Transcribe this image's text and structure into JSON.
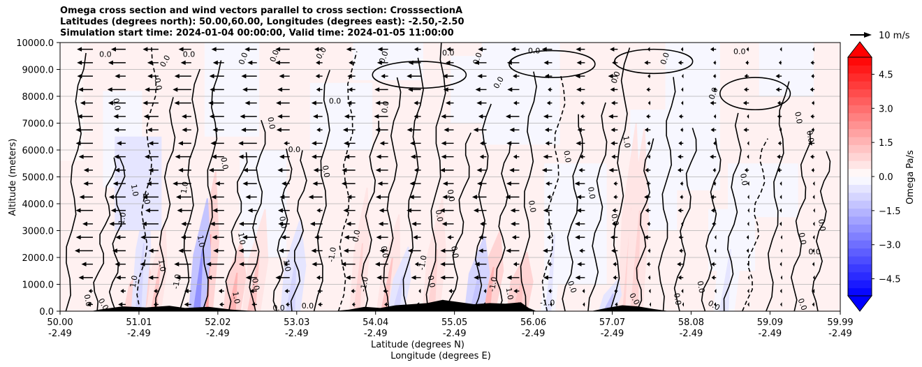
{
  "title": {
    "line1": "Omega cross section and wind vectors parallel to cross section: CrosssectionA",
    "line2": "Latitudes (degrees north): 50.00,60.00, Longitudes (degrees east): -2.50,-2.50",
    "line3": "Simulation start time: 2024-01-04 00:00:00, Valid time: 2024-01-05 11:00:00"
  },
  "chart_data": {
    "type": "heatmap",
    "xlabel_lat": "Latitude (degrees N)",
    "xlabel_lon": "Longitude (degrees E)",
    "ylabel": "Altitude (meters)",
    "xlim": [
      50.0,
      59.99
    ],
    "ylim": [
      0,
      10000
    ],
    "x_ticks": [
      {
        "lat": "50.00",
        "lon": "-2.49",
        "value": 50.0
      },
      {
        "lat": "51.01",
        "lon": "-2.49",
        "value": 51.01
      },
      {
        "lat": "52.02",
        "lon": "-2.49",
        "value": 52.02
      },
      {
        "lat": "53.03",
        "lon": "-2.49",
        "value": 53.03
      },
      {
        "lat": "54.04",
        "lon": "-2.49",
        "value": 54.04
      },
      {
        "lat": "55.05",
        "lon": "-2.49",
        "value": 55.05
      },
      {
        "lat": "56.06",
        "lon": "-2.49",
        "value": 56.06
      },
      {
        "lat": "57.07",
        "lon": "-2.49",
        "value": 57.07
      },
      {
        "lat": "58.08",
        "lon": "-2.49",
        "value": 58.08
      },
      {
        "lat": "59.09",
        "lon": "-2.49",
        "value": 59.09
      },
      {
        "lat": "59.99",
        "lon": "-2.49",
        "value": 59.99
      }
    ],
    "y_ticks": [
      {
        "label": "0.0",
        "value": 0
      },
      {
        "label": "1000.0",
        "value": 1000
      },
      {
        "label": "2000.0",
        "value": 2000
      },
      {
        "label": "3000.0",
        "value": 3000
      },
      {
        "label": "4000.0",
        "value": 4000
      },
      {
        "label": "5000.0",
        "value": 5000
      },
      {
        "label": "6000.0",
        "value": 6000
      },
      {
        "label": "7000.0",
        "value": 7000
      },
      {
        "label": "8000.0",
        "value": 8000
      },
      {
        "label": "9000.0",
        "value": 9000
      },
      {
        "label": "10000.0",
        "value": 10000
      }
    ],
    "grid": "horizontal",
    "colorbar": {
      "label": "Omega Pa/s",
      "range": [
        -5.25,
        5.25
      ],
      "extend": "both",
      "ticks": [
        "4.5",
        "3.0",
        "1.5",
        "0.0",
        "−1.5",
        "−3.0",
        "−4.5"
      ],
      "tick_values": [
        4.5,
        3.0,
        1.5,
        0.0,
        -1.5,
        -3.0,
        -4.5
      ],
      "levels": [
        -5.25,
        -4.9,
        -4.55,
        -4.2,
        -3.85,
        -3.5,
        -3.15,
        -2.8,
        -2.45,
        -2.1,
        -1.75,
        -1.4,
        -1.05,
        -0.7,
        -0.35,
        0,
        0.35,
        0.7,
        1.05,
        1.4,
        1.75,
        2.1,
        2.45,
        2.8,
        3.15,
        3.5,
        3.85,
        4.2,
        4.55,
        4.9,
        5.25
      ],
      "colormap": "bwr",
      "under_color": "#0000ff",
      "over_color": "#ff0000"
    },
    "quiver_key": {
      "label": "10 m/s",
      "speed": 10
    },
    "positive_bands": [
      {
        "lat": 50.95,
        "alt_top": 2000,
        "omega": 1.5
      },
      {
        "lat": 51.2,
        "alt_top": 3200,
        "omega": 1.2
      },
      {
        "lat": 51.85,
        "alt_top": 5200,
        "omega": 1.8
      },
      {
        "lat": 52.2,
        "alt_top": 2600,
        "omega": 1.6
      },
      {
        "lat": 52.45,
        "alt_top": 3800,
        "omega": 1.2
      },
      {
        "lat": 53.8,
        "alt_top": 4600,
        "omega": 0.9
      },
      {
        "lat": 54.15,
        "alt_top": 3600,
        "omega": 1.1
      },
      {
        "lat": 54.75,
        "alt_top": 4200,
        "omega": 0.9
      },
      {
        "lat": 55.45,
        "alt_top": 3000,
        "omega": 1.4
      },
      {
        "lat": 55.85,
        "alt_top": 2200,
        "omega": 1.3
      },
      {
        "lat": 57.25,
        "alt_top": 7000,
        "omega": 0.7
      },
      {
        "lat": 57.35,
        "alt_top": 6800,
        "omega": 0.8
      }
    ],
    "negative_bands": [
      {
        "lat": 51.0,
        "alt_top": 4600,
        "omega": -0.9
      },
      {
        "lat": 51.75,
        "alt_top": 4200,
        "omega": -2.2
      },
      {
        "lat": 52.95,
        "alt_top": 3400,
        "omega": -0.8
      },
      {
        "lat": 54.3,
        "alt_top": 2400,
        "omega": -1.0
      },
      {
        "lat": 55.3,
        "alt_top": 2800,
        "omega": -1.3
      },
      {
        "lat": 56.25,
        "alt_top": 5200,
        "omega": -0.6
      },
      {
        "lat": 57.0,
        "alt_top": 1200,
        "omega": -1.2
      },
      {
        "lat": 58.5,
        "alt_top": 4200,
        "omega": -0.5
      }
    ],
    "contour_labels": [
      {
        "text": "0.0",
        "lat": 50.58,
        "alt": 9550,
        "angle": 0
      },
      {
        "text": "0.0",
        "lat": 51.35,
        "alt": 9300,
        "angle": -60
      },
      {
        "text": "0.0",
        "lat": 51.65,
        "alt": 9550,
        "angle": 0
      },
      {
        "text": "0.0",
        "lat": 52.35,
        "alt": 9400,
        "angle": -70
      },
      {
        "text": "0.0",
        "lat": 52.75,
        "alt": 9500,
        "angle": -70
      },
      {
        "text": "0.0",
        "lat": 53.35,
        "alt": 9600,
        "angle": -60
      },
      {
        "text": "0.0",
        "lat": 54.15,
        "alt": 9450,
        "angle": -70
      },
      {
        "text": "0.0",
        "lat": 54.97,
        "alt": 9600,
        "angle": 0
      },
      {
        "text": "0.0",
        "lat": 55.35,
        "alt": 9400,
        "angle": -70
      },
      {
        "text": "0.0",
        "lat": 56.07,
        "alt": 9680,
        "angle": 0
      },
      {
        "text": "0.0",
        "lat": 57.75,
        "alt": 9400,
        "angle": -70
      },
      {
        "text": "0.0",
        "lat": 58.7,
        "alt": 9650,
        "angle": 0
      },
      {
        "text": "0.0",
        "lat": 51.25,
        "alt": 8450,
        "angle": 80
      },
      {
        "text": "0.0",
        "lat": 53.52,
        "alt": 7800,
        "angle": 0
      },
      {
        "text": "0.0",
        "lat": 54.17,
        "alt": 7600,
        "angle": -80
      },
      {
        "text": "0.0",
        "lat": 55.62,
        "alt": 8500,
        "angle": -60
      },
      {
        "text": "0.0",
        "lat": 57.12,
        "alt": 8700,
        "angle": -70
      },
      {
        "text": "0.0",
        "lat": 58.37,
        "alt": 8100,
        "angle": -70
      },
      {
        "text": "0.0",
        "lat": 50.72,
        "alt": 7700,
        "angle": 80
      },
      {
        "text": "0.0",
        "lat": 52.7,
        "alt": 7000,
        "angle": 80
      },
      {
        "text": "0.0",
        "lat": 53.0,
        "alt": 6000,
        "angle": 0
      },
      {
        "text": "1.0",
        "lat": 57.25,
        "alt": 6300,
        "angle": 80
      },
      {
        "text": "0.0",
        "lat": 56.49,
        "alt": 5750,
        "angle": 80
      },
      {
        "text": "0.0",
        "lat": 59.45,
        "alt": 7200,
        "angle": 80
      },
      {
        "text": "0.0",
        "lat": 59.6,
        "alt": 6500,
        "angle": 80
      },
      {
        "text": "0.0",
        "lat": 52.1,
        "alt": 5500,
        "angle": 80
      },
      {
        "text": "0.0",
        "lat": 53.4,
        "alt": 5200,
        "angle": 80
      },
      {
        "text": "1.0",
        "lat": 51.6,
        "alt": 4600,
        "angle": -80
      },
      {
        "text": "1.0",
        "lat": 50.95,
        "alt": 4500,
        "angle": 80
      },
      {
        "text": "1.0",
        "lat": 51.1,
        "alt": 4200,
        "angle": 80
      },
      {
        "text": "0.0",
        "lat": 55.0,
        "alt": 4300,
        "angle": 80
      },
      {
        "text": "0.0",
        "lat": 56.8,
        "alt": 4400,
        "angle": 80
      },
      {
        "text": "0.0",
        "lat": 58.75,
        "alt": 4900,
        "angle": 80
      },
      {
        "text": "0.0",
        "lat": 56.04,
        "alt": 3900,
        "angle": 80
      },
      {
        "text": "-1.0",
        "lat": 50.8,
        "alt": 3400,
        "angle": -80
      },
      {
        "text": "0.0",
        "lat": 52.85,
        "alt": 3300,
        "angle": 80
      },
      {
        "text": "0.0",
        "lat": 54.85,
        "alt": 3550,
        "angle": 80
      },
      {
        "text": "0.0",
        "lat": 57.1,
        "alt": 3400,
        "angle": 80
      },
      {
        "text": "0.0",
        "lat": 59.75,
        "alt": 3200,
        "angle": 80
      },
      {
        "text": "0.0",
        "lat": 59.5,
        "alt": 2700,
        "angle": 80
      },
      {
        "text": "1.0",
        "lat": 51.8,
        "alt": 2600,
        "angle": 80
      },
      {
        "text": "1.0",
        "lat": 52.32,
        "alt": 2700,
        "angle": 80
      },
      {
        "text": "0.0",
        "lat": 53.8,
        "alt": 2800,
        "angle": -80
      },
      {
        "text": "-1.0",
        "lat": 53.49,
        "alt": 2100,
        "angle": -80
      },
      {
        "text": "0.0",
        "lat": 54.15,
        "alt": 2200,
        "angle": 80
      },
      {
        "text": "0.0",
        "lat": 55.05,
        "alt": 2200,
        "angle": 80
      },
      {
        "text": "0.0",
        "lat": 59.66,
        "alt": 2200,
        "angle": 0
      },
      {
        "text": "1.0",
        "lat": 51.3,
        "alt": 1700,
        "angle": 80
      },
      {
        "text": "1.0",
        "lat": 52.9,
        "alt": 1700,
        "angle": 80
      },
      {
        "text": "-1.0",
        "lat": 54.65,
        "alt": 1800,
        "angle": -80
      },
      {
        "text": "1.0",
        "lat": 50.95,
        "alt": 1100,
        "angle": -80
      },
      {
        "text": "-1.0",
        "lat": 51.5,
        "alt": 1100,
        "angle": -80
      },
      {
        "text": "0.0",
        "lat": 52.5,
        "alt": 1000,
        "angle": 80
      },
      {
        "text": "-1.0",
        "lat": 53.9,
        "alt": 1000,
        "angle": -80
      },
      {
        "text": "0.0",
        "lat": 54.75,
        "alt": 1100,
        "angle": 80
      },
      {
        "text": "-1.0",
        "lat": 55.55,
        "alt": 1000,
        "angle": -80
      },
      {
        "text": "0.0",
        "lat": 56.55,
        "alt": 900,
        "angle": 70
      },
      {
        "text": "0.0",
        "lat": 58.2,
        "alt": 900,
        "angle": 80
      },
      {
        "text": "1.0",
        "lat": 52.25,
        "alt": 500,
        "angle": 80
      },
      {
        "text": "1.0",
        "lat": 55.75,
        "alt": 650,
        "angle": 80
      },
      {
        "text": "-1.0",
        "lat": 56.24,
        "alt": 300,
        "angle": 0
      },
      {
        "text": "0.0",
        "lat": 57.35,
        "alt": 450,
        "angle": 60
      },
      {
        "text": "0.0",
        "lat": 57.9,
        "alt": 450,
        "angle": 80
      },
      {
        "text": "0.0",
        "lat": 58.37,
        "alt": 200,
        "angle": 30
      },
      {
        "text": "0.0",
        "lat": 59.5,
        "alt": 250,
        "angle": 70
      },
      {
        "text": "0.0",
        "lat": 50.35,
        "alt": 400,
        "angle": 80
      },
      {
        "text": "0.0",
        "lat": 50.55,
        "alt": 250,
        "angle": 60
      },
      {
        "text": "0.0",
        "lat": 52.8,
        "alt": 100,
        "angle": 0
      },
      {
        "text": "0.0",
        "lat": 53.17,
        "alt": 180,
        "angle": 0
      }
    ]
  }
}
